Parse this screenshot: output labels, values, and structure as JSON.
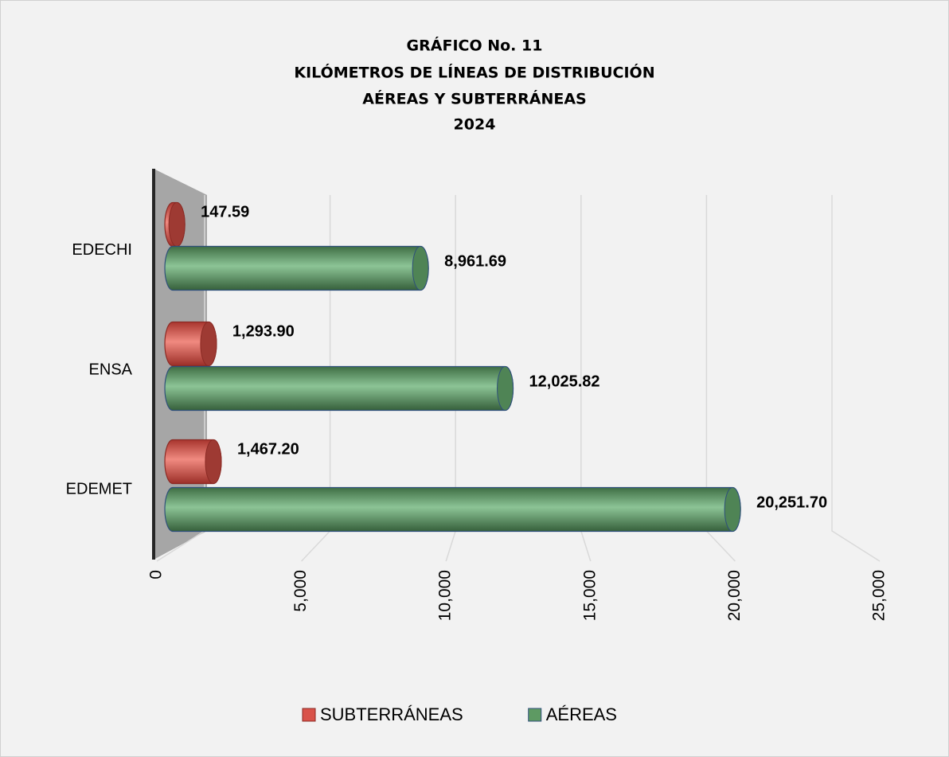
{
  "chart_data": {
    "type": "bar3d-horizontal",
    "title": [
      "GRÁFICO  No.  11",
      "KILÓMETROS DE LÍNEAS DE DISTRIBUCIÓN",
      "AÉREAS Y SUBTERRÁNEAS",
      "2024"
    ],
    "categories": [
      "EDECHI",
      "ENSA",
      "EDEMET"
    ],
    "series": [
      {
        "name": "SUBTERRÁNEAS",
        "color": "#d9534a",
        "values": [
          147.59,
          1293.9,
          1467.2
        ],
        "value_labels": [
          "147.59",
          "1,293.90",
          "1,467.20"
        ]
      },
      {
        "name": "AÉREAS",
        "color": "#5e9a63",
        "values": [
          8961.69,
          12025.82,
          20251.7
        ],
        "value_labels": [
          "8,961.69",
          "12,025.82",
          "20,251.70"
        ]
      }
    ],
    "xlim": [
      0,
      25000
    ],
    "xticks": [
      0,
      {
        "value": 5000,
        "label": "5,000"
      },
      {
        "value": 10000,
        "label": "10,000"
      },
      {
        "value": 15000,
        "label": "15,000"
      },
      {
        "value": 20000,
        "label": "20,000"
      },
      {
        "value": 25000,
        "label": "25,000"
      }
    ],
    "grid": true,
    "legend": "bottom"
  }
}
